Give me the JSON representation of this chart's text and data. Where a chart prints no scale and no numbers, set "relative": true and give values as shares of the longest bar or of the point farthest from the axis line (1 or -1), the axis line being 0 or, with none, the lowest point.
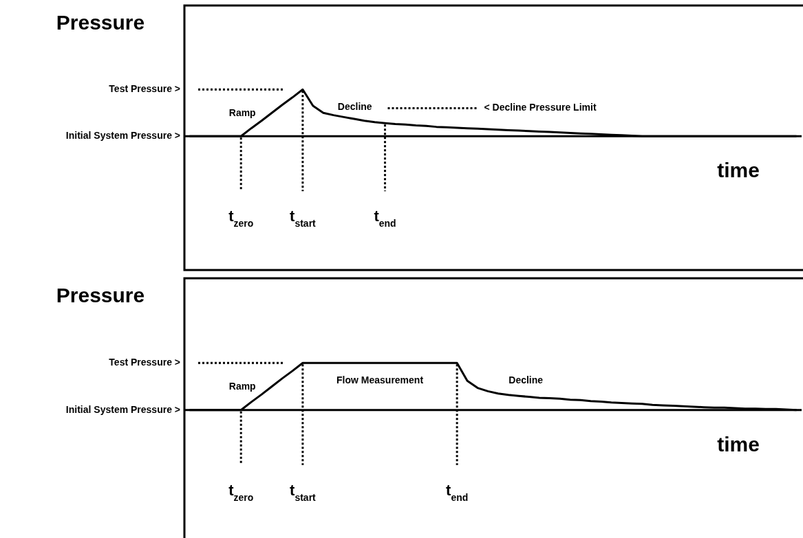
{
  "chart_data": [
    {
      "type": "line",
      "relative": true,
      "ylabel": "Pressure",
      "xlabel": "time",
      "categories": [
        null,
        null,
        null,
        null,
        null,
        "t$_{zero}$",
        null,
        null,
        null,
        null,
        null,
        "t$_{start}$",
        null,
        null,
        null,
        null,
        null,
        null,
        null,
        "t$_{end}$",
        null,
        null,
        null,
        null,
        null,
        null,
        null,
        null,
        null,
        null,
        null,
        null,
        null,
        null,
        null,
        null,
        null,
        null,
        null,
        null,
        null,
        null,
        null,
        null,
        null,
        null,
        null,
        null,
        null,
        null,
        null,
        null,
        null,
        null,
        null,
        null,
        null,
        null,
        null,
        null
      ],
      "series": [
        {
          "color": "#000000",
          "values": [
            0,
            0,
            0,
            0,
            0,
            0,
            0.17,
            0.33,
            0.5,
            0.67,
            0.83,
            1,
            0.65,
            0.5,
            0.45,
            0.41,
            0.37,
            0.33,
            0.3,
            0.28,
            0.26,
            0.25,
            0.23,
            0.22,
            0.2,
            0.19,
            0.18,
            0.17,
            0.16,
            0.15,
            0.14,
            0.13,
            0.12,
            0.11,
            0.1,
            0.09,
            0.08,
            0.07,
            0.06,
            0.05,
            0.04,
            0.03,
            0.02,
            0.01,
            0,
            0,
            0,
            0,
            0,
            0,
            0,
            0,
            0,
            0,
            0,
            0,
            0,
            0,
            0,
            0
          ]
        }
      ],
      "ref_lines": [
        {
          "axis": "y",
          "value": 1,
          "label": "Test Pressure >",
          "line_style": "dotted",
          "color": "#000000"
        },
        {
          "axis": "y",
          "value": 0,
          "label": "Initial System Pressure >",
          "color": "#000000"
        },
        {
          "axis": "y",
          "value": 0.6,
          "label": "< Decline Pressure Limit",
          "line_style": "dotted",
          "color": "#000000"
        }
      ],
      "annotations": [
        "Ramp",
        "Decline"
      ]
    },
    {
      "type": "line",
      "relative": true,
      "ylabel": "Pressure",
      "xlabel": "time",
      "categories": [
        null,
        null,
        null,
        null,
        null,
        "t$_{zero}$",
        null,
        null,
        null,
        null,
        null,
        "t$_{start}$",
        null,
        null,
        null,
        null,
        null,
        null,
        null,
        null,
        null,
        null,
        null,
        null,
        null,
        null,
        "t$_{end}$",
        null,
        null,
        null,
        null,
        null,
        null,
        null,
        null,
        null,
        null,
        null,
        null,
        null,
        null,
        null,
        null,
        null,
        null,
        null,
        null,
        null,
        null,
        null,
        null,
        null,
        null,
        null,
        null,
        null,
        null,
        null,
        null,
        null
      ],
      "series": [
        {
          "color": "#000000",
          "values": [
            0,
            0,
            0,
            0,
            0,
            0,
            0.17,
            0.33,
            0.5,
            0.67,
            0.83,
            1,
            1,
            1,
            1,
            1,
            1,
            1,
            1,
            1,
            1,
            1,
            1,
            1,
            1,
            1,
            1,
            0.62,
            0.47,
            0.4,
            0.35,
            0.32,
            0.3,
            0.28,
            0.26,
            0.25,
            0.24,
            0.22,
            0.21,
            0.19,
            0.18,
            0.16,
            0.15,
            0.14,
            0.13,
            0.11,
            0.1,
            0.09,
            0.08,
            0.07,
            0.06,
            0.05,
            0.05,
            0.04,
            0.03,
            0.03,
            0.02,
            0.02,
            0.01,
            0
          ]
        }
      ],
      "ref_lines": [
        {
          "axis": "y",
          "value": 1,
          "label": "Test Pressure >",
          "line_style": "dotted",
          "color": "#000000"
        },
        {
          "axis": "y",
          "value": 0,
          "label": "Initial System Pressure >",
          "color": "#000000"
        }
      ],
      "annotations": [
        "Ramp",
        "Flow Measurement",
        "Decline"
      ]
    }
  ]
}
